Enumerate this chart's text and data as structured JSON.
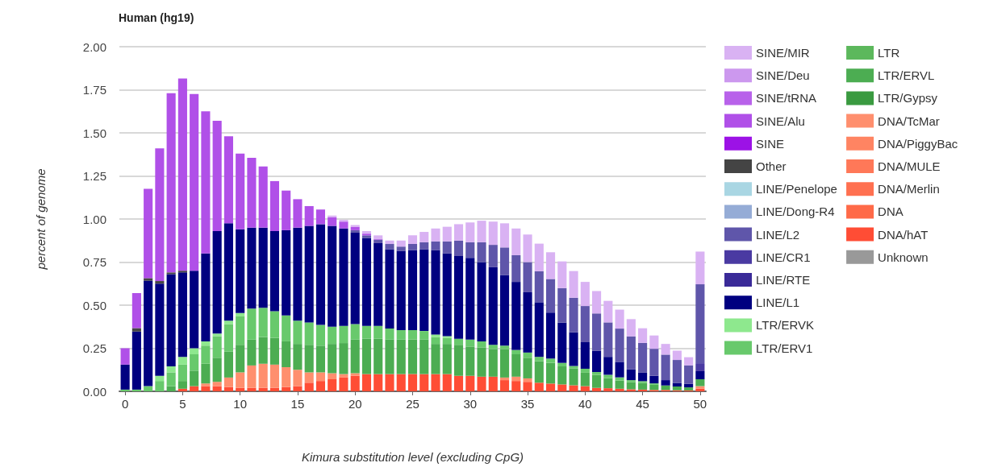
{
  "chart_data": {
    "type": "bar",
    "title": "Human (hg19)",
    "xlabel": "Kimura substitution level (excluding CpG)",
    "ylabel": "percent of genome",
    "stacked": true,
    "grid": "y",
    "legend": "right",
    "categories": [
      "0",
      null,
      null,
      null,
      null,
      "5",
      null,
      null,
      null,
      null,
      "10",
      null,
      null,
      null,
      null,
      "15",
      null,
      null,
      null,
      null,
      "20",
      null,
      null,
      null,
      null,
      "25",
      null,
      null,
      null,
      null,
      "30",
      null,
      null,
      null,
      null,
      "35",
      null,
      null,
      null,
      null,
      "40",
      null,
      null,
      null,
      null,
      "45",
      null,
      null,
      null,
      null,
      "50"
    ],
    "ylim": [
      0,
      2
    ],
    "yticks": [
      {
        "value": 0,
        "label": "0.00"
      },
      {
        "value": 0.25,
        "label": "0.25"
      },
      {
        "value": 0.5,
        "label": "0.50"
      },
      {
        "value": 0.75,
        "label": "0.75"
      },
      {
        "value": 1,
        "label": "1.00"
      },
      {
        "value": 1.25,
        "label": "1.25"
      },
      {
        "value": 1.5,
        "label": "1.50"
      },
      {
        "value": 1.75,
        "label": "1.75"
      },
      {
        "value": 2,
        "label": "2.00"
      }
    ],
    "series": [
      {
        "name": "Unknown",
        "color": "#999999",
        "values": [
          0,
          0,
          0,
          0,
          0,
          0,
          0,
          0,
          0,
          0,
          0,
          0,
          0,
          0,
          0,
          0,
          0,
          0,
          0,
          0,
          0,
          0,
          0,
          0,
          0,
          0,
          0,
          0,
          0,
          0,
          0,
          0,
          0,
          0,
          0,
          0,
          0,
          0,
          0,
          0,
          0,
          0,
          0,
          0,
          0,
          0,
          0,
          0,
          0,
          0,
          0
        ]
      },
      {
        "name": "DNA/hAT",
        "color": "#ff4d35",
        "values": [
          0,
          0,
          0,
          0,
          0,
          0.015,
          0.03,
          0.03,
          0.03,
          0.025,
          0.02,
          0.02,
          0.02,
          0.02,
          0.025,
          0.03,
          0.05,
          0.06,
          0.07,
          0.08,
          0.09,
          0.1,
          0.1,
          0.1,
          0.1,
          0.1,
          0.1,
          0.1,
          0.1,
          0.09,
          0.09,
          0.085,
          0.085,
          0.065,
          0.06,
          0.055,
          0.05,
          0.045,
          0.04,
          0.035,
          0.03,
          0.02,
          0.018,
          0.015,
          0.012,
          0.01,
          0.008,
          0.008,
          0.006,
          0.005,
          0.015
        ]
      },
      {
        "name": "DNA",
        "color": "#ff6a48",
        "values": [
          0,
          0,
          0,
          0,
          0,
          0,
          0,
          0,
          0,
          0,
          0,
          0,
          0,
          0,
          0,
          0,
          0,
          0,
          0,
          0,
          0,
          0,
          0,
          0,
          0,
          0,
          0,
          0,
          0,
          0,
          0,
          0,
          0,
          0,
          0,
          0,
          0,
          0,
          0,
          0,
          0,
          0,
          0,
          0,
          0,
          0,
          0,
          0,
          0,
          0,
          0
        ]
      },
      {
        "name": "DNA/Merlin",
        "color": "#ff7050",
        "values": [
          0,
          0,
          0,
          0,
          0,
          0,
          0,
          0,
          0,
          0,
          0,
          0,
          0,
          0,
          0,
          0,
          0,
          0,
          0,
          0,
          0,
          0,
          0,
          0,
          0,
          0,
          0,
          0,
          0,
          0,
          0,
          0,
          0,
          0,
          0,
          0,
          0,
          0,
          0,
          0,
          0,
          0,
          0,
          0,
          0,
          0,
          0,
          0,
          0,
          0,
          0
        ]
      },
      {
        "name": "DNA/MULE",
        "color": "#ff7858",
        "values": [
          0,
          0,
          0,
          0,
          0,
          0,
          0,
          0,
          0,
          0,
          0,
          0,
          0,
          0,
          0,
          0,
          0,
          0,
          0,
          0,
          0,
          0,
          0,
          0,
          0,
          0,
          0,
          0,
          0,
          0,
          0,
          0,
          0,
          0,
          0,
          0,
          0,
          0,
          0,
          0,
          0,
          0,
          0,
          0,
          0,
          0,
          0,
          0,
          0,
          0,
          0
        ]
      },
      {
        "name": "DNA/PiggyBac",
        "color": "#ff8462",
        "values": [
          0,
          0,
          0,
          0,
          0,
          0,
          0,
          0,
          0,
          0,
          0,
          0,
          0,
          0,
          0,
          0,
          0,
          0,
          0,
          0,
          0,
          0,
          0,
          0,
          0,
          0,
          0,
          0,
          0,
          0,
          0,
          0,
          0,
          0,
          0,
          0,
          0,
          0,
          0,
          0,
          0,
          0,
          0,
          0,
          0,
          0,
          0,
          0,
          0,
          0,
          0
        ]
      },
      {
        "name": "DNA/TcMar",
        "color": "#ff8f6e",
        "values": [
          0,
          0,
          0,
          0,
          0,
          0,
          0,
          0.015,
          0.025,
          0.055,
          0.09,
          0.13,
          0.14,
          0.135,
          0.115,
          0.095,
          0.06,
          0.05,
          0.035,
          0.02,
          0.015,
          0,
          0,
          0,
          0,
          0,
          0,
          0,
          0,
          0,
          0,
          0,
          0,
          0.015,
          0.025,
          0.02,
          0,
          0,
          0,
          0,
          0,
          0,
          0,
          0,
          0,
          0,
          0,
          0,
          0,
          0,
          0.015
        ]
      },
      {
        "name": "LTR/Gypsy",
        "color": "#3a9a40",
        "values": [
          0,
          0,
          0,
          0,
          0,
          0,
          0,
          0,
          0,
          0,
          0,
          0,
          0,
          0,
          0,
          0,
          0,
          0,
          0,
          0,
          0,
          0,
          0,
          0,
          0,
          0,
          0,
          0,
          0,
          0,
          0,
          0,
          0,
          0,
          0,
          0,
          0,
          0,
          0,
          0,
          0,
          0,
          0,
          0,
          0,
          0,
          0,
          0,
          0,
          0,
          0
        ]
      },
      {
        "name": "LTR/ERVL",
        "color": "#4cad52",
        "values": [
          0,
          0,
          0,
          0,
          0.03,
          0.045,
          0.09,
          0.115,
          0.14,
          0.15,
          0.16,
          0.15,
          0.155,
          0.155,
          0.15,
          0.15,
          0.16,
          0.155,
          0.17,
          0.18,
          0.195,
          0.205,
          0.205,
          0.2,
          0.2,
          0.2,
          0.2,
          0.175,
          0.175,
          0.18,
          0.17,
          0.17,
          0.16,
          0.165,
          0.13,
          0.12,
          0.125,
          0.12,
          0.105,
          0.097,
          0.078,
          0.075,
          0.059,
          0.048,
          0.042,
          0.039,
          0.03,
          0.026,
          0.022,
          0.018,
          0.04
        ]
      },
      {
        "name": "LTR",
        "color": "#5cb85c",
        "values": [
          0,
          0,
          0,
          0,
          0,
          0,
          0,
          0,
          0,
          0,
          0,
          0,
          0,
          0,
          0,
          0,
          0,
          0,
          0,
          0,
          0,
          0,
          0,
          0,
          0,
          0,
          0,
          0,
          0,
          0,
          0,
          0,
          0,
          0,
          0,
          0,
          0,
          0,
          0,
          0,
          0,
          0,
          0,
          0,
          0,
          0,
          0,
          0,
          0,
          0,
          0
        ]
      },
      {
        "name": "LTR/ERV1",
        "color": "#68c96c",
        "values": [
          0.01,
          0.01,
          0.03,
          0.06,
          0.08,
          0.095,
          0.095,
          0.105,
          0.125,
          0.16,
          0.165,
          0.18,
          0.17,
          0.155,
          0.15,
          0.135,
          0.13,
          0.12,
          0.1,
          0.1,
          0.09,
          0.075,
          0.075,
          0.065,
          0.055,
          0.055,
          0.05,
          0.04,
          0.035,
          0.035,
          0.04,
          0.035,
          0.025,
          0.02,
          0.025,
          0.03,
          0.025,
          0.025,
          0.02,
          0.015,
          0.023,
          0.017,
          0.019,
          0.018,
          0.011,
          0.01,
          0.008,
          0,
          0,
          0,
          0
        ]
      },
      {
        "name": "LTR/ERVK",
        "color": "#8ee88e",
        "values": [
          0,
          0,
          0,
          0.03,
          0.035,
          0.045,
          0.035,
          0.025,
          0.015,
          0.02,
          0.02,
          0,
          0,
          0,
          0,
          0,
          0,
          0,
          0,
          0,
          0,
          0,
          0,
          0,
          0,
          0,
          0,
          0.015,
          0.01,
          0,
          0,
          0,
          0,
          0,
          0,
          0,
          0,
          0,
          0,
          0,
          0,
          0,
          0,
          0,
          0,
          0,
          0,
          0,
          0,
          0,
          0
        ]
      },
      {
        "name": "LINE/L1",
        "color": "#000080",
        "values": [
          0.145,
          0.337,
          0.612,
          0.535,
          0.535,
          0.49,
          0.45,
          0.51,
          0.595,
          0.565,
          0.485,
          0.47,
          0.465,
          0.465,
          0.495,
          0.54,
          0.56,
          0.585,
          0.585,
          0.565,
          0.53,
          0.51,
          0.48,
          0.46,
          0.46,
          0.465,
          0.475,
          0.49,
          0.48,
          0.48,
          0.475,
          0.46,
          0.45,
          0.41,
          0.395,
          0.35,
          0.317,
          0.267,
          0.234,
          0.196,
          0.154,
          0.124,
          0.104,
          0.09,
          0.062,
          0.049,
          0.044,
          0.031,
          0.021,
          0.02,
          0.047
        ]
      },
      {
        "name": "LINE/RTE",
        "color": "#3a2a98",
        "values": [
          0,
          0,
          0,
          0,
          0,
          0,
          0,
          0,
          0,
          0,
          0,
          0,
          0,
          0,
          0,
          0,
          0,
          0,
          0,
          0,
          0,
          0,
          0,
          0,
          0,
          0,
          0,
          0,
          0,
          0,
          0,
          0,
          0,
          0,
          0,
          0,
          0,
          0,
          0,
          0,
          0,
          0,
          0,
          0,
          0,
          0,
          0,
          0,
          0,
          0,
          0
        ]
      },
      {
        "name": "LINE/CR1",
        "color": "#4a3aa2",
        "values": [
          0,
          0,
          0,
          0,
          0,
          0,
          0,
          0,
          0,
          0,
          0,
          0,
          0,
          0,
          0,
          0,
          0,
          0,
          0,
          0,
          0,
          0,
          0,
          0,
          0,
          0,
          0,
          0,
          0,
          0,
          0,
          0,
          0,
          0,
          0,
          0,
          0,
          0,
          0,
          0,
          0,
          0,
          0,
          0,
          0,
          0,
          0,
          0,
          0,
          0,
          0.046
        ]
      },
      {
        "name": "LINE/L2",
        "color": "#5f56aa",
        "values": [
          0,
          0,
          0,
          0,
          0,
          0,
          0,
          0,
          0,
          0,
          0,
          0,
          0,
          0,
          0,
          0,
          0,
          0,
          0,
          0,
          0.015,
          0.015,
          0.02,
          0.03,
          0.025,
          0.035,
          0.04,
          0.05,
          0.07,
          0.09,
          0.09,
          0.115,
          0.13,
          0.16,
          0.155,
          0.175,
          0.18,
          0.195,
          0.2,
          0.2,
          0.21,
          0.216,
          0.2,
          0.193,
          0.192,
          0.173,
          0.157,
          0.148,
          0.133,
          0.108,
          0.458
        ]
      },
      {
        "name": "LINE/Dong-R4",
        "color": "#95acd6",
        "values": [
          0,
          0,
          0,
          0,
          0,
          0,
          0,
          0,
          0,
          0,
          0,
          0,
          0,
          0,
          0,
          0,
          0,
          0,
          0,
          0,
          0,
          0,
          0,
          0,
          0,
          0,
          0,
          0,
          0,
          0,
          0,
          0,
          0,
          0,
          0,
          0,
          0,
          0,
          0,
          0,
          0,
          0,
          0,
          0,
          0,
          0,
          0,
          0,
          0,
          0,
          0
        ]
      },
      {
        "name": "LINE/Penelope",
        "color": "#a9d6e3",
        "values": [
          0,
          0,
          0,
          0,
          0,
          0,
          0,
          0,
          0,
          0,
          0,
          0,
          0,
          0,
          0,
          0,
          0,
          0,
          0,
          0,
          0,
          0,
          0,
          0,
          0,
          0,
          0,
          0,
          0,
          0,
          0,
          0,
          0,
          0,
          0,
          0,
          0,
          0,
          0,
          0,
          0,
          0,
          0,
          0,
          0,
          0,
          0,
          0,
          0,
          0,
          0
        ]
      },
      {
        "name": "Other",
        "color": "#444444",
        "values": [
          0,
          0.02,
          0.015,
          0.015,
          0.01,
          0.01,
          0,
          0,
          0,
          0,
          0,
          0,
          0,
          0,
          0,
          0,
          0,
          0,
          0,
          0,
          0,
          0,
          0,
          0,
          0,
          0,
          0,
          0,
          0,
          0,
          0,
          0,
          0,
          0,
          0,
          0,
          0,
          0,
          0,
          0,
          0,
          0,
          0,
          0,
          0,
          0,
          0,
          0,
          0,
          0,
          0
        ]
      },
      {
        "name": "SINE",
        "color": "#9c12e6",
        "values": [
          0,
          0,
          0,
          0,
          0,
          0,
          0,
          0,
          0,
          0,
          0,
          0,
          0,
          0,
          0,
          0,
          0,
          0,
          0,
          0,
          0,
          0,
          0,
          0,
          0,
          0,
          0,
          0,
          0,
          0,
          0,
          0,
          0,
          0,
          0,
          0,
          0,
          0,
          0,
          0,
          0,
          0,
          0,
          0,
          0,
          0,
          0,
          0,
          0,
          0,
          0
        ]
      },
      {
        "name": "SINE/Alu",
        "color": "#b050e8",
        "values": [
          0.095,
          0.203,
          0.518,
          0.77,
          1.04,
          1.115,
          1.025,
          0.825,
          0.64,
          0.505,
          0.44,
          0.405,
          0.355,
          0.29,
          0.23,
          0.165,
          0.115,
          0.085,
          0.05,
          0.04,
          0.02,
          0.01,
          0.005,
          0,
          0,
          0,
          0,
          0,
          0,
          0,
          0,
          0,
          0,
          0,
          0,
          0,
          0,
          0,
          0,
          0,
          0,
          0,
          0,
          0,
          0,
          0,
          0,
          0,
          0,
          0,
          0
        ]
      },
      {
        "name": "SINE/tRNA",
        "color": "#b862ea",
        "values": [
          0,
          0,
          0,
          0,
          0,
          0,
          0,
          0,
          0,
          0,
          0,
          0,
          0,
          0,
          0,
          0,
          0,
          0,
          0,
          0,
          0,
          0,
          0,
          0,
          0,
          0,
          0,
          0,
          0,
          0,
          0,
          0,
          0,
          0,
          0,
          0,
          0,
          0,
          0,
          0,
          0,
          0,
          0,
          0,
          0,
          0,
          0,
          0,
          0,
          0,
          0
        ]
      },
      {
        "name": "SINE/Deu",
        "color": "#cc98ee",
        "values": [
          0,
          0,
          0,
          0,
          0,
          0,
          0,
          0,
          0,
          0,
          0,
          0,
          0,
          0,
          0,
          0,
          0,
          0,
          0,
          0,
          0,
          0,
          0,
          0,
          0,
          0,
          0,
          0,
          0,
          0,
          0,
          0,
          0,
          0,
          0,
          0,
          0,
          0,
          0,
          0,
          0,
          0,
          0,
          0,
          0,
          0,
          0,
          0,
          0,
          0,
          0
        ]
      },
      {
        "name": "SINE/MIR",
        "color": "#d9b2f3",
        "values": [
          0,
          0,
          0,
          0,
          0,
          0,
          0,
          0,
          0,
          0,
          0,
          0,
          0,
          0,
          0,
          0,
          0,
          0,
          0.01,
          0.01,
          0.01,
          0.015,
          0.02,
          0.02,
          0.035,
          0.05,
          0.06,
          0.075,
          0.085,
          0.095,
          0.115,
          0.125,
          0.135,
          0.14,
          0.155,
          0.16,
          0.16,
          0.155,
          0.155,
          0.155,
          0.14,
          0.13,
          0.125,
          0.11,
          0.1,
          0.085,
          0.077,
          0.062,
          0.054,
          0.047,
          0.19
        ]
      }
    ]
  }
}
